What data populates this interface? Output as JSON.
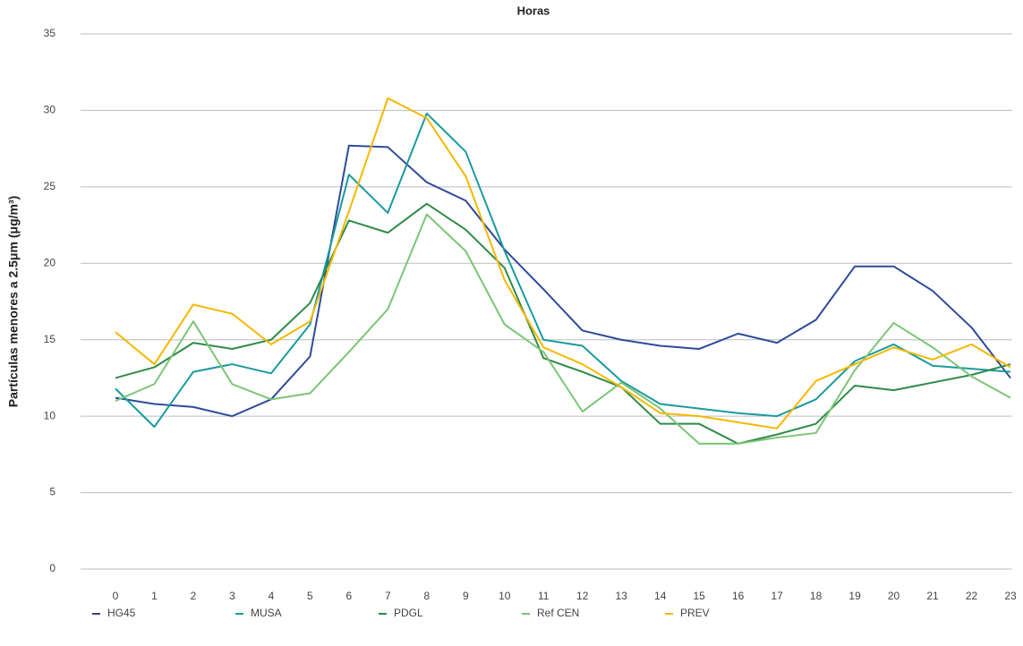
{
  "chart_data": {
    "type": "line",
    "title": "Horas",
    "y_label": "Partículas menores a 2.5μm (μg/m³)",
    "x": [
      0,
      1,
      2,
      3,
      4,
      5,
      6,
      7,
      8,
      9,
      10,
      11,
      12,
      13,
      14,
      15,
      16,
      17,
      18,
      19,
      20,
      21,
      22,
      23
    ],
    "xlim": [
      0,
      23
    ],
    "ylim": [
      0,
      35
    ],
    "yticks": [
      0,
      5,
      10,
      15,
      20,
      25,
      30,
      35
    ],
    "grid": true,
    "legend": "bottom",
    "series": [
      {
        "name": "HG45",
        "color": "#2e4a9a",
        "values": [
          11.2,
          10.8,
          10.6,
          10.0,
          11.1,
          13.9,
          27.7,
          27.6,
          25.3,
          24.1,
          20.9,
          18.3,
          15.6,
          15.0,
          14.6,
          14.4,
          15.4,
          14.8,
          16.3,
          19.8,
          19.8,
          18.2,
          15.8,
          12.5
        ]
      },
      {
        "name": "MUSA",
        "color": "#1a9aa0",
        "values": [
          11.8,
          9.3,
          12.9,
          13.4,
          12.8,
          16.0,
          25.8,
          23.3,
          29.8,
          27.3,
          20.8,
          15.0,
          14.6,
          12.3,
          10.8,
          10.5,
          10.2,
          10.0,
          11.1,
          13.6,
          14.7,
          13.3,
          13.1,
          12.9
        ]
      },
      {
        "name": "PDGL",
        "color": "#2e8b47",
        "values": [
          12.5,
          13.2,
          14.8,
          14.4,
          15.0,
          17.4,
          22.8,
          22.0,
          23.9,
          22.2,
          19.7,
          13.8,
          12.9,
          11.9,
          9.5,
          9.5,
          8.2,
          8.8,
          9.5,
          12.0,
          11.7,
          12.2,
          12.7,
          13.4
        ]
      },
      {
        "name": "Ref CEN",
        "color": "#7cc576",
        "values": [
          11.0,
          12.1,
          16.2,
          12.1,
          11.1,
          11.5,
          14.2,
          17.0,
          23.2,
          20.8,
          16.0,
          14.2,
          10.3,
          12.2,
          10.5,
          8.2,
          8.2,
          8.6,
          8.9,
          13.0,
          16.1,
          14.5,
          12.6,
          11.2
        ]
      },
      {
        "name": "PREV",
        "color": "#f5b800",
        "values": [
          15.5,
          13.4,
          17.3,
          16.7,
          14.7,
          16.2,
          23.4,
          30.8,
          29.5,
          25.7,
          18.9,
          14.5,
          13.4,
          11.9,
          10.2,
          10.0,
          9.6,
          9.2,
          12.3,
          13.4,
          14.5,
          13.7,
          14.7,
          13.2
        ]
      }
    ]
  }
}
